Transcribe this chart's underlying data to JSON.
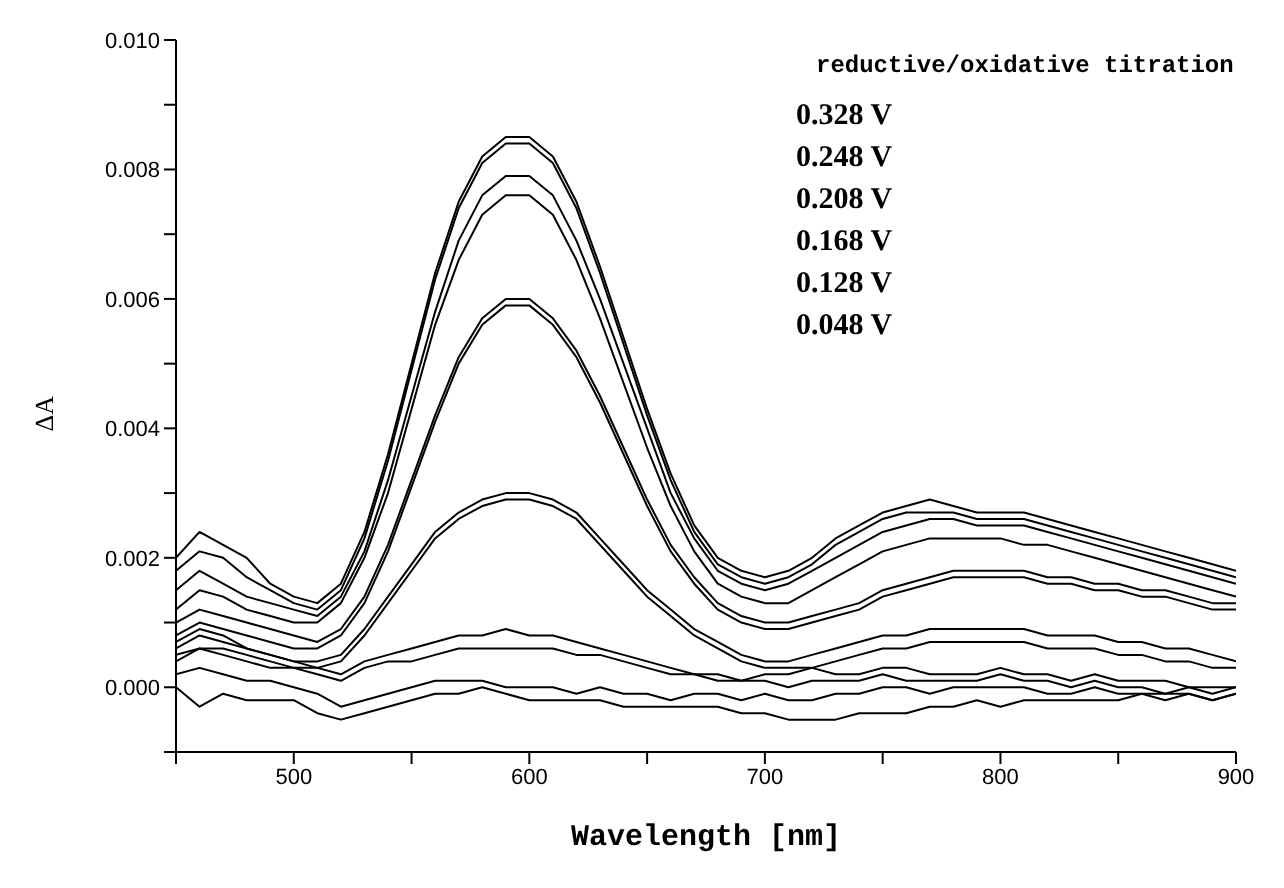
{
  "chart_data": {
    "type": "line",
    "xlabel": "Wavelength [nm]",
    "ylabel": "ΔA",
    "annotations": [
      "reductive/oxidative titration",
      "0.328 V",
      "0.248 V",
      "0.208 V",
      "0.168 V",
      "0.128 V",
      "0.048 V"
    ],
    "xlim": [
      450,
      900
    ],
    "xticks": [
      {
        "value": 450,
        "label": null
      },
      {
        "value": 500,
        "label": "500"
      },
      {
        "value": 550,
        "label": null
      },
      {
        "value": 600,
        "label": "600"
      },
      {
        "value": 650,
        "label": null
      },
      {
        "value": 700,
        "label": "700"
      },
      {
        "value": 750,
        "label": null
      },
      {
        "value": 800,
        "label": "800"
      },
      {
        "value": 850,
        "label": null
      },
      {
        "value": 900,
        "label": "900"
      }
    ],
    "ylim": [
      -0.001,
      0.01
    ],
    "yticks": [
      {
        "value": -0.001,
        "label": null
      },
      {
        "value": 0,
        "label": "0.000"
      },
      {
        "value": 0.001,
        "label": null
      },
      {
        "value": 0.002,
        "label": "0.002"
      },
      {
        "value": 0.003,
        "label": null
      },
      {
        "value": 0.004,
        "label": "0.004"
      },
      {
        "value": 0.005,
        "label": null
      },
      {
        "value": 0.006,
        "label": "0.006"
      },
      {
        "value": 0.007,
        "label": null
      },
      {
        "value": 0.008,
        "label": "0.008"
      },
      {
        "value": 0.009,
        "label": null
      },
      {
        "value": 0.01,
        "label": "0.010"
      }
    ],
    "grid": false,
    "marker": "none",
    "line_style": "solid",
    "x": [
      450,
      460,
      470,
      480,
      490,
      500,
      510,
      520,
      530,
      540,
      550,
      560,
      570,
      580,
      590,
      600,
      610,
      620,
      630,
      640,
      650,
      660,
      670,
      680,
      690,
      700,
      710,
      720,
      730,
      740,
      750,
      760,
      770,
      780,
      790,
      800,
      810,
      820,
      830,
      840,
      850,
      860,
      870,
      880,
      890,
      900
    ],
    "series": [
      {
        "color": "#000000",
        "values": [
          0.002,
          0.0024,
          0.0022,
          0.002,
          0.0016,
          0.0014,
          0.0013,
          0.0016,
          0.0024,
          0.0036,
          0.005,
          0.0064,
          0.0075,
          0.0082,
          0.0085,
          0.0085,
          0.0082,
          0.0075,
          0.0065,
          0.0054,
          0.0043,
          0.0033,
          0.0025,
          0.002,
          0.0018,
          0.0017,
          0.0018,
          0.002,
          0.0023,
          0.0025,
          0.0027,
          0.0028,
          0.0029,
          0.0028,
          0.0027,
          0.0027,
          0.0027,
          0.0026,
          0.0025,
          0.0024,
          0.0023,
          0.0022,
          0.0021,
          0.002,
          0.0019,
          0.0018
        ]
      },
      {
        "color": "#000000",
        "values": [
          0.0018,
          0.0021,
          0.002,
          0.0017,
          0.0015,
          0.0013,
          0.0012,
          0.0015,
          0.0023,
          0.0035,
          0.0049,
          0.0063,
          0.0074,
          0.0081,
          0.0084,
          0.0084,
          0.0081,
          0.0074,
          0.0064,
          0.0053,
          0.0042,
          0.0032,
          0.0024,
          0.0019,
          0.0017,
          0.0016,
          0.0017,
          0.0019,
          0.0022,
          0.0024,
          0.0026,
          0.0027,
          0.0027,
          0.0027,
          0.0026,
          0.0026,
          0.0026,
          0.0025,
          0.0024,
          0.0023,
          0.0022,
          0.0021,
          0.002,
          0.0019,
          0.0018,
          0.0017
        ]
      },
      {
        "color": "#000000",
        "values": [
          0.0015,
          0.0018,
          0.0016,
          0.0014,
          0.0013,
          0.0012,
          0.0011,
          0.0014,
          0.0021,
          0.0032,
          0.0045,
          0.0058,
          0.0069,
          0.0076,
          0.0079,
          0.0079,
          0.0076,
          0.0069,
          0.006,
          0.005,
          0.004,
          0.003,
          0.0023,
          0.0018,
          0.0016,
          0.0015,
          0.0016,
          0.0018,
          0.002,
          0.0022,
          0.0024,
          0.0025,
          0.0026,
          0.0026,
          0.0025,
          0.0025,
          0.0025,
          0.0024,
          0.0023,
          0.0022,
          0.0021,
          0.002,
          0.0019,
          0.0018,
          0.0017,
          0.0016
        ]
      },
      {
        "color": "#000000",
        "values": [
          0.0012,
          0.0015,
          0.0014,
          0.0012,
          0.0011,
          0.001,
          0.001,
          0.0013,
          0.002,
          0.003,
          0.0043,
          0.0056,
          0.0066,
          0.0073,
          0.0076,
          0.0076,
          0.0073,
          0.0066,
          0.0057,
          0.0047,
          0.0037,
          0.0028,
          0.0021,
          0.0016,
          0.0014,
          0.0013,
          0.0013,
          0.0015,
          0.0017,
          0.0019,
          0.0021,
          0.0022,
          0.0023,
          0.0023,
          0.0023,
          0.0023,
          0.0022,
          0.0022,
          0.0021,
          0.002,
          0.0019,
          0.0018,
          0.0017,
          0.0016,
          0.0015,
          0.0014
        ]
      },
      {
        "color": "#000000",
        "values": [
          0.001,
          0.0012,
          0.0011,
          0.001,
          0.0009,
          0.0008,
          0.0007,
          0.0009,
          0.0014,
          0.0022,
          0.0032,
          0.0042,
          0.0051,
          0.0057,
          0.006,
          0.006,
          0.0057,
          0.0052,
          0.0045,
          0.0037,
          0.0029,
          0.0022,
          0.0017,
          0.0013,
          0.0011,
          0.001,
          0.001,
          0.0011,
          0.0012,
          0.0013,
          0.0015,
          0.0016,
          0.0017,
          0.0018,
          0.0018,
          0.0018,
          0.0018,
          0.0017,
          0.0017,
          0.0016,
          0.0016,
          0.0015,
          0.0015,
          0.0014,
          0.0013,
          0.0013
        ]
      },
      {
        "color": "#000000",
        "values": [
          0.0008,
          0.001,
          0.0009,
          0.0008,
          0.0007,
          0.0006,
          0.0006,
          0.0008,
          0.0013,
          0.0021,
          0.0031,
          0.0041,
          0.005,
          0.0056,
          0.0059,
          0.0059,
          0.0056,
          0.0051,
          0.0044,
          0.0036,
          0.0028,
          0.0021,
          0.0016,
          0.0012,
          0.001,
          0.0009,
          0.0009,
          0.001,
          0.0011,
          0.0012,
          0.0014,
          0.0015,
          0.0016,
          0.0017,
          0.0017,
          0.0017,
          0.0017,
          0.0016,
          0.0016,
          0.0015,
          0.0015,
          0.0014,
          0.0014,
          0.0013,
          0.0012,
          0.0012
        ]
      },
      {
        "color": "#000000",
        "values": [
          0.0006,
          0.0008,
          0.0007,
          0.0006,
          0.0005,
          0.0004,
          0.0004,
          0.0005,
          0.0009,
          0.0014,
          0.0019,
          0.0024,
          0.0027,
          0.0029,
          0.003,
          0.003,
          0.0029,
          0.0027,
          0.0023,
          0.0019,
          0.0015,
          0.0012,
          0.0009,
          0.0007,
          0.0005,
          0.0004,
          0.0004,
          0.0005,
          0.0006,
          0.0007,
          0.0008,
          0.0008,
          0.0009,
          0.0009,
          0.0009,
          0.0009,
          0.0009,
          0.0008,
          0.0008,
          0.0008,
          0.0007,
          0.0007,
          0.0006,
          0.0006,
          0.0005,
          0.0004
        ]
      },
      {
        "color": "#000000",
        "values": [
          0.0005,
          0.0006,
          0.0006,
          0.0005,
          0.0004,
          0.0003,
          0.0003,
          0.0004,
          0.0008,
          0.0013,
          0.0018,
          0.0023,
          0.0026,
          0.0028,
          0.0029,
          0.0029,
          0.0028,
          0.0026,
          0.0022,
          0.0018,
          0.0014,
          0.0011,
          0.0008,
          0.0006,
          0.0004,
          0.0003,
          0.0003,
          0.0003,
          0.0004,
          0.0005,
          0.0006,
          0.0006,
          0.0007,
          0.0007,
          0.0007,
          0.0007,
          0.0007,
          0.0006,
          0.0006,
          0.0006,
          0.0005,
          0.0005,
          0.0004,
          0.0004,
          0.0003,
          0.0003
        ]
      },
      {
        "color": "#000000",
        "values": [
          0.0007,
          0.0009,
          0.0008,
          0.0006,
          0.0005,
          0.0004,
          0.0003,
          0.0002,
          0.0004,
          0.0005,
          0.0006,
          0.0007,
          0.0008,
          0.0008,
          0.0009,
          0.0008,
          0.0008,
          0.0007,
          0.0006,
          0.0005,
          0.0004,
          0.0003,
          0.0002,
          0.0002,
          0.0001,
          0.0002,
          0.0002,
          0.0003,
          0.0002,
          0.0002,
          0.0003,
          0.0003,
          0.0002,
          0.0002,
          0.0002,
          0.0003,
          0.0002,
          0.0002,
          0.0001,
          0.0002,
          0.0001,
          0.0001,
          0.0001,
          0.0,
          0.0,
          0.0
        ]
      },
      {
        "color": "#000000",
        "values": [
          0.0004,
          0.0006,
          0.0005,
          0.0004,
          0.0003,
          0.0003,
          0.0002,
          0.0001,
          0.0003,
          0.0004,
          0.0004,
          0.0005,
          0.0006,
          0.0006,
          0.0006,
          0.0006,
          0.0006,
          0.0005,
          0.0005,
          0.0004,
          0.0003,
          0.0002,
          0.0002,
          0.0001,
          0.0001,
          0.0001,
          0.0,
          0.0001,
          0.0001,
          0.0001,
          0.0002,
          0.0001,
          0.0001,
          0.0001,
          0.0001,
          0.0002,
          0.0001,
          0.0001,
          0.0,
          0.0001,
          0.0,
          0.0,
          -0.0001,
          0.0,
          -0.0001,
          0.0
        ]
      },
      {
        "color": "#000000",
        "values": [
          0.0002,
          0.0003,
          0.0002,
          0.0001,
          0.0001,
          0.0,
          -0.0001,
          -0.0003,
          -0.0002,
          -0.0001,
          0.0,
          0.0001,
          0.0001,
          0.0001,
          0.0,
          0.0,
          0.0,
          -0.0001,
          0.0,
          -0.0001,
          -0.0001,
          -0.0002,
          -0.0001,
          -0.0001,
          -0.0002,
          -0.0001,
          -0.0002,
          -0.0002,
          -0.0001,
          -0.0001,
          0.0,
          0.0,
          -0.0001,
          0.0,
          0.0,
          0.0,
          0.0,
          -0.0001,
          -0.0001,
          0.0,
          -0.0001,
          -0.0001,
          -0.0001,
          -0.0001,
          -0.0002,
          -0.0001
        ]
      },
      {
        "color": "#000000",
        "values": [
          0.0,
          -0.0003,
          -0.0001,
          -0.0002,
          -0.0002,
          -0.0002,
          -0.0004,
          -0.0005,
          -0.0004,
          -0.0003,
          -0.0002,
          -0.0001,
          -0.0001,
          0.0,
          -0.0001,
          -0.0002,
          -0.0002,
          -0.0002,
          -0.0002,
          -0.0003,
          -0.0003,
          -0.0003,
          -0.0003,
          -0.0003,
          -0.0004,
          -0.0004,
          -0.0005,
          -0.0005,
          -0.0005,
          -0.0004,
          -0.0004,
          -0.0004,
          -0.0003,
          -0.0003,
          -0.0002,
          -0.0003,
          -0.0002,
          -0.0002,
          -0.0002,
          -0.0002,
          -0.0002,
          -0.0001,
          -0.0002,
          -0.0001,
          -0.0002,
          -0.0001
        ]
      }
    ]
  }
}
